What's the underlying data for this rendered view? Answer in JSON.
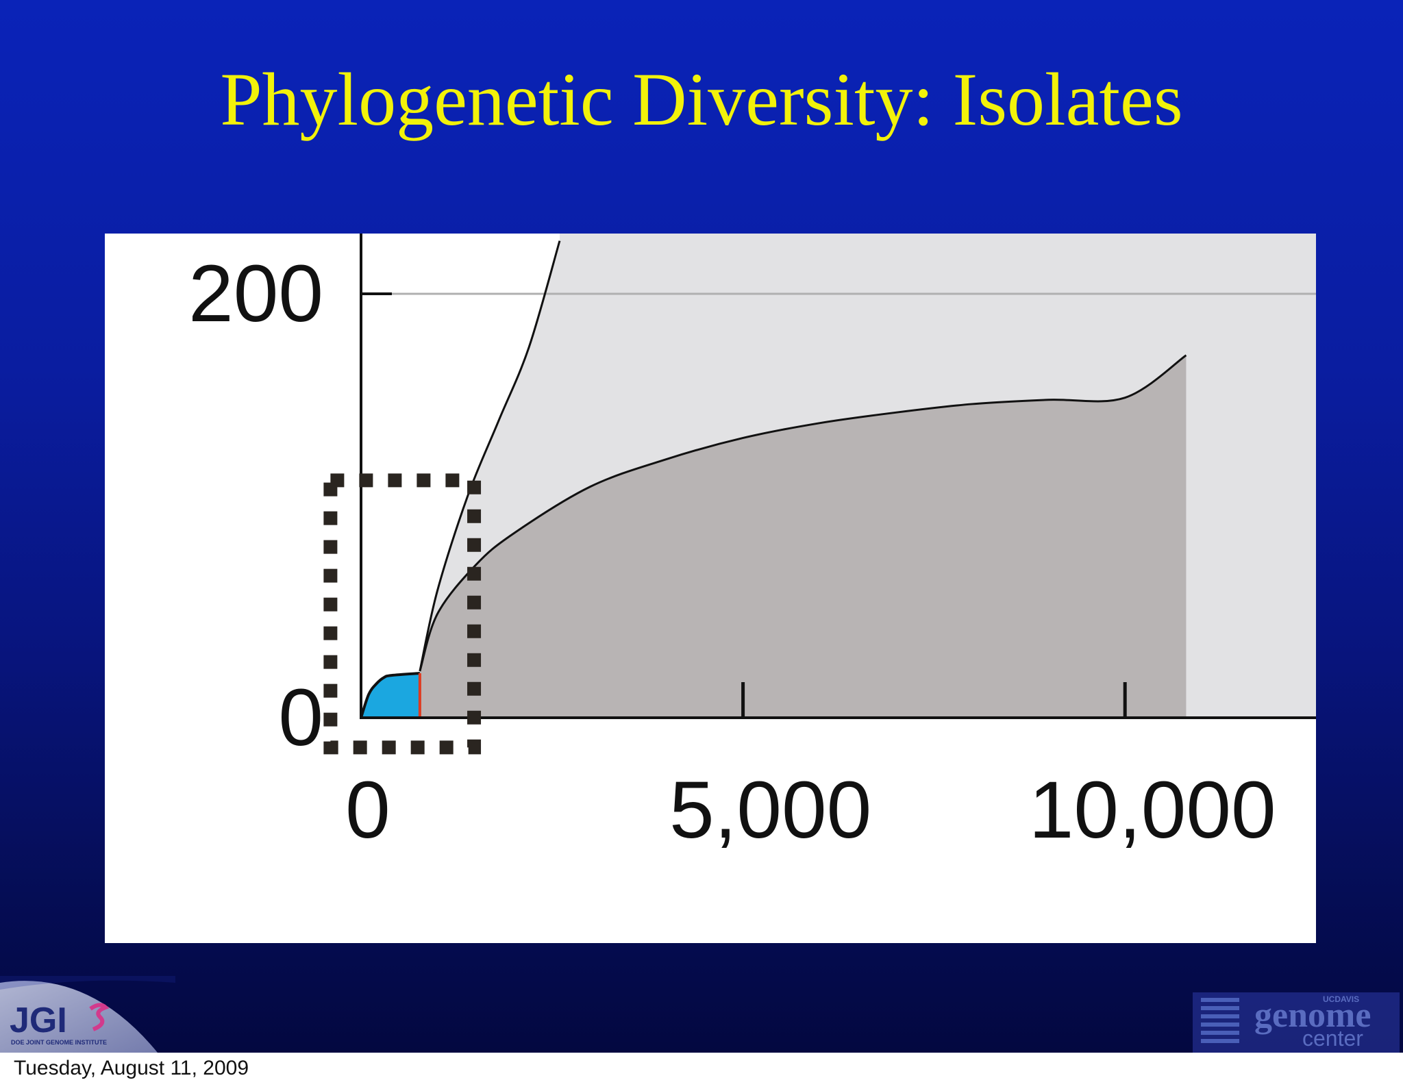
{
  "slide": {
    "title": "Phylogenetic Diversity: Isolates",
    "footer_date": "Tuesday, August 11, 2009"
  },
  "logos": {
    "left": {
      "text": "JGI",
      "subtitle": "DOE JOINT GENOME INSTITUTE"
    },
    "right": {
      "top_text": "UCDAVIS",
      "main_text": "genome",
      "sub_text": "center"
    }
  },
  "colors": {
    "title": "#f2f20a",
    "outer_fill": "#e2e2e4",
    "inner_fill": "#b8b4b4",
    "small_fill": "#1ba7e0",
    "marker_line": "#e03a1e",
    "box_dash": "#2a2520",
    "gridline": "#b0b0b0"
  },
  "chart_data": {
    "type": "area",
    "title": "",
    "xlabel": "",
    "ylabel": "",
    "xlim": [
      0,
      12500
    ],
    "ylim": [
      0,
      200
    ],
    "x_ticks": [
      0,
      5000,
      10000
    ],
    "x_tick_labels": [
      "0",
      "5,000",
      "10,000"
    ],
    "y_ticks": [
      0,
      200
    ],
    "y_tick_labels": [
      "0",
      "200"
    ],
    "grid": false,
    "legend": "none",
    "series": [
      {
        "x": [
          770,
          1000,
          1400,
          1800,
          2200,
          2600
        ],
        "y": [
          22,
          60,
          105,
          140,
          175,
          225
        ]
      },
      {
        "x": [
          770,
          1000,
          1500,
          2000,
          3000,
          4000,
          5000,
          6000,
          7000,
          8000,
          9000,
          10000,
          10800
        ],
        "y": [
          22,
          49,
          72,
          87,
          109,
          122,
          132,
          139,
          144,
          148,
          150,
          151,
          171
        ]
      },
      {
        "x": [
          0,
          100,
          200,
          300,
          400,
          770
        ],
        "y": [
          0,
          11,
          16,
          19,
          20,
          21
        ]
      }
    ],
    "annotations": [
      {
        "kind": "vertical-line",
        "x": 770,
        "y_range": [
          0,
          21
        ]
      },
      {
        "kind": "dashed-box",
        "x_range": [
          -400,
          1480
        ],
        "y_range": [
          -14,
          112
        ]
      },
      {
        "kind": "horizontal-reference-line",
        "y": 200
      }
    ]
  }
}
